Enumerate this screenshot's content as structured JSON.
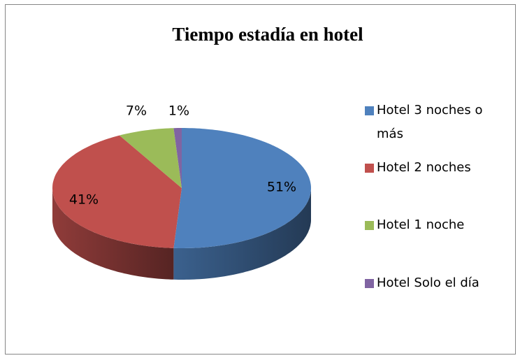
{
  "chart_data": {
    "type": "pie3d",
    "title": "Tiempo estadía en hotel",
    "categories": [
      "Hotel 3 noches o más",
      "Hotel 2 noches",
      "Hotel 1 noche",
      "Hotel Solo el día"
    ],
    "values": [
      51,
      41,
      7,
      1
    ],
    "value_labels": [
      "51%",
      "41%",
      "7%",
      "1%"
    ],
    "colors": [
      "#4f81bd",
      "#c0504d",
      "#9bbb59",
      "#8064a2"
    ],
    "legend": "right"
  }
}
